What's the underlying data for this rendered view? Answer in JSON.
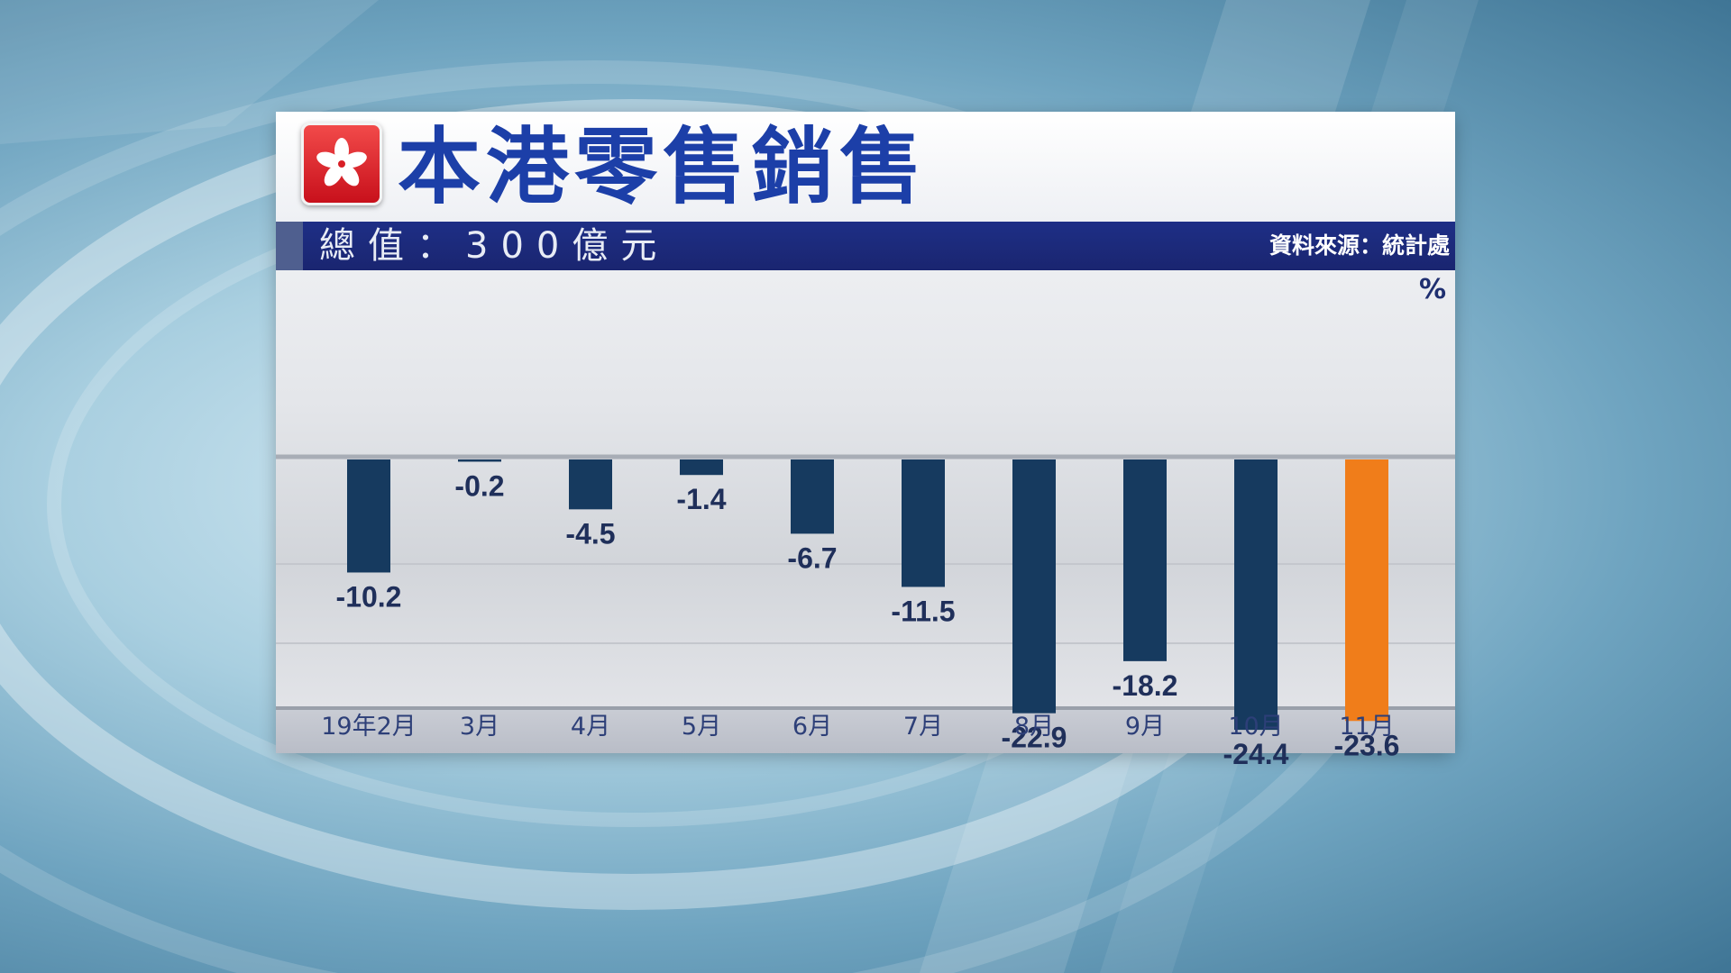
{
  "header": {
    "title": "本港零售銷售",
    "subtitle": "總值：300億元",
    "source": "資料來源：統計處",
    "unit": "%"
  },
  "colors": {
    "bar": "#163a5f",
    "highlight": "#f07d1a",
    "title": "#1c3fa8",
    "banner": "#1e2f86"
  },
  "icons": {
    "flag": "hong-kong-flag-icon"
  },
  "chart_data": {
    "type": "bar",
    "title": "本港零售銷售",
    "categories": [
      "19年2月",
      "3月",
      "4月",
      "5月",
      "6月",
      "7月",
      "8月",
      "9月",
      "10月",
      "11月"
    ],
    "values": [
      -10.2,
      -0.2,
      -4.5,
      -1.4,
      -6.7,
      -11.5,
      -22.9,
      -18.2,
      -24.4,
      -23.6
    ],
    "data_labels": [
      "-10.2",
      "-0.2",
      "-4.5",
      "-1.4",
      "-6.7",
      "-11.5",
      "-22.9",
      "-18.2",
      "-24.4",
      "-23.6"
    ],
    "highlight_index": 9,
    "ylabel": "%",
    "ylim": [
      -28,
      0
    ],
    "grid": true,
    "legend": "none"
  }
}
